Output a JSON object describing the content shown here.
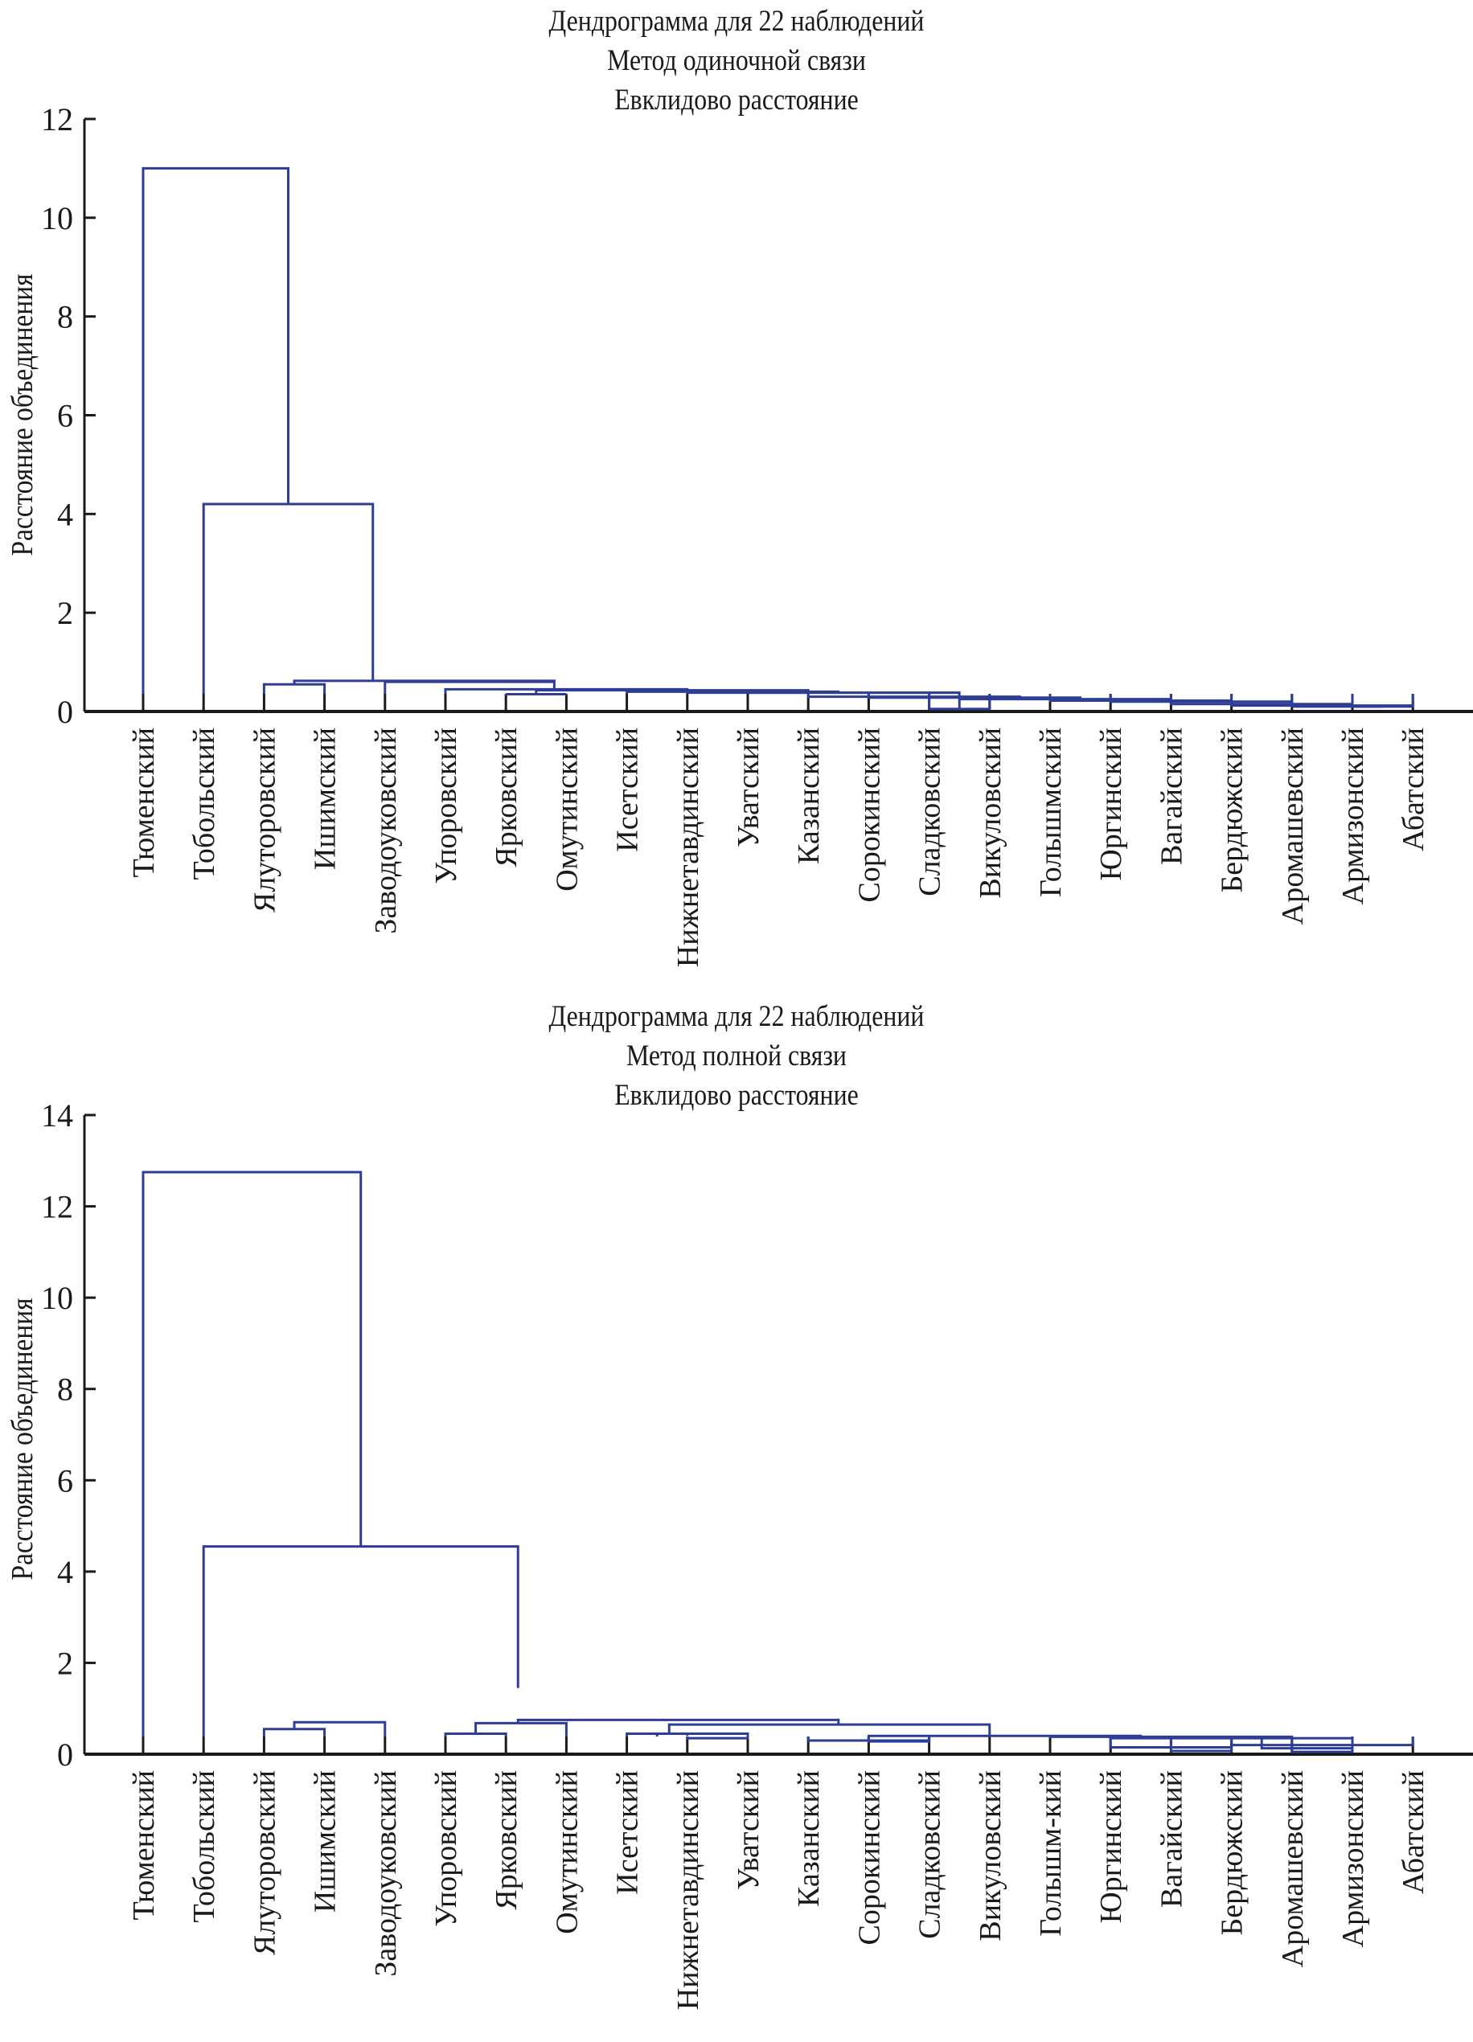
{
  "chart_data": [
    {
      "type": "dendrogram",
      "title": [
        "Дендрограмма для 22 наблюдений",
        "Метод одиночной связи",
        "Евклидово расстояние"
      ],
      "xlabel": "",
      "ylabel": "Расстояние объединения",
      "ylim": [
        0,
        12
      ],
      "yticks": [
        "0",
        "2",
        "4",
        "6",
        "8",
        "10",
        "12"
      ],
      "grid": false,
      "line_color": "#2e3d96",
      "leaves": [
        "Тюменский",
        "Тобольский",
        "Ялуторовский",
        "Ишимский",
        "Заводоуковский",
        "Упоровский",
        "Ярковский",
        "Омутинский",
        "Исетский",
        "Нижнетавдинский",
        "Уватский",
        "Казанский",
        "Сорокинский",
        "Сладковский",
        "Викуловский",
        "Голышмский",
        "Юргинский",
        "Вагайский",
        "Бердюжский",
        "Аромашевский",
        "Армизонский",
        "Абатский"
      ],
      "links": [
        [
          0,
          2.4,
          11.0,
          0,
          4.2
        ],
        [
          1,
          3.8,
          4.2,
          0,
          0.62
        ],
        [
          2,
          3,
          0.55,
          0,
          0
        ],
        [
          2.5,
          6.8,
          0.62,
          0.55,
          0.6
        ],
        [
          4,
          6.8,
          0.6,
          0,
          0.45
        ],
        [
          5,
          9,
          0.45,
          0,
          0.43
        ],
        [
          6,
          7,
          0.35,
          0,
          0
        ],
        [
          6.5,
          11,
          0.43,
          0.35,
          0.4
        ],
        [
          8,
          11.5,
          0.4,
          0,
          0.38
        ],
        [
          9,
          13.5,
          0.38,
          0,
          0.38
        ],
        [
          10,
          13.5,
          0.38,
          0,
          0.3
        ],
        [
          11,
          14.5,
          0.3,
          0,
          0.28
        ],
        [
          12,
          15.5,
          0.28,
          0,
          0.25
        ],
        [
          13,
          14,
          0.05,
          0,
          0
        ],
        [
          13.5,
          17,
          0.25,
          0.05,
          0.22
        ],
        [
          15,
          18,
          0.22,
          0,
          0.2
        ],
        [
          16,
          19,
          0.2,
          0,
          0.15
        ],
        [
          17,
          20,
          0.15,
          0,
          0.12
        ],
        [
          18,
          21,
          0.12,
          0,
          0.12
        ],
        [
          19,
          20.5,
          0.1,
          0,
          0.1
        ],
        [
          20,
          21,
          0.1,
          0,
          0
        ]
      ]
    },
    {
      "type": "dendrogram",
      "title": [
        "Дендрограмма для 22 наблюдений",
        "Метод полной связи",
        "Евклидово расстояние"
      ],
      "xlabel": "",
      "ylabel": "Расстояние объединения",
      "ylim": [
        0,
        14
      ],
      "yticks": [
        "0",
        "2",
        "4",
        "6",
        "8",
        "10",
        "12",
        "14"
      ],
      "grid": false,
      "line_color": "#2e3d96",
      "leaves": [
        "Тюменский",
        "Тобольский",
        "Ялуторовский",
        "Ишимский",
        "Заводоуковский",
        "Упоровский",
        "Ярковский",
        "Омутинский",
        "Исетский",
        "Нижнетавдинский",
        "Уватский",
        "Казанский",
        "Сорокинский",
        "Сладковский",
        "Викуловский",
        "Голышм-кий",
        "Юргинский",
        "Вагайский",
        "Бердюжский",
        "Аромашевский",
        "Армизонский",
        "Абатский"
      ],
      "links": [
        [
          0,
          3.6,
          12.75,
          0,
          4.55
        ],
        [
          1,
          6.2,
          4.55,
          0,
          1.45
        ],
        [
          2,
          3,
          0.55,
          0,
          0
        ],
        [
          2.5,
          4,
          0.7,
          0.55,
          0
        ],
        [
          5,
          6,
          0.45,
          0,
          0
        ],
        [
          5.5,
          7,
          0.68,
          0.45,
          0
        ],
        [
          6.2,
          11.5,
          0.75,
          0.68,
          0.65
        ],
        [
          8,
          9,
          0.45,
          0,
          0.4
        ],
        [
          8.5,
          10,
          0.45,
          0,
          0
        ],
        [
          9,
          10,
          0.35,
          0,
          0
        ],
        [
          8.7,
          14,
          0.65,
          0.45,
          0.4
        ],
        [
          11,
          13,
          0.3,
          0,
          0
        ],
        [
          12,
          13,
          0.28,
          0,
          0
        ],
        [
          12,
          16.5,
          0.4,
          0.3,
          0.38
        ],
        [
          15,
          19,
          0.38,
          0,
          0.35
        ],
        [
          16,
          20,
          0.35,
          0,
          0.18
        ],
        [
          16,
          18,
          0.15,
          0,
          0
        ],
        [
          17,
          18,
          0.07,
          0,
          0
        ],
        [
          18,
          21,
          0.2,
          0,
          0
        ],
        [
          18.5,
          20,
          0.13,
          0,
          0
        ],
        [
          19,
          20,
          0.05,
          0,
          0
        ]
      ]
    }
  ]
}
